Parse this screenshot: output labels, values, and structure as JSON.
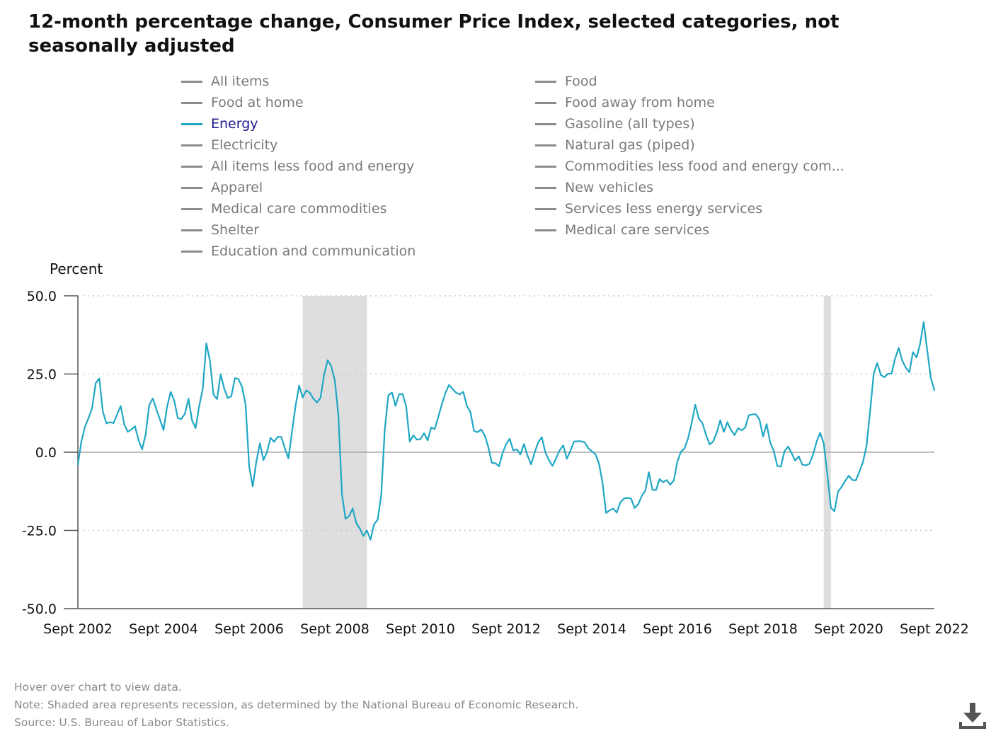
{
  "title": "12-month percentage change, Consumer Price Index, selected categories, not seasonally adjusted",
  "legend": [
    {
      "label": "All items",
      "active": false
    },
    {
      "label": "Food",
      "active": false
    },
    {
      "label": "Food at home",
      "active": false
    },
    {
      "label": "Food away from home",
      "active": false
    },
    {
      "label": "Energy",
      "active": true
    },
    {
      "label": "Gasoline (all types)",
      "active": false
    },
    {
      "label": "Electricity",
      "active": false
    },
    {
      "label": "Natural gas (piped)",
      "active": false
    },
    {
      "label": "All items less food and energy",
      "active": false
    },
    {
      "label": "Commodities less food and energy com...",
      "active": false
    },
    {
      "label": "Apparel",
      "active": false
    },
    {
      "label": "New vehicles",
      "active": false
    },
    {
      "label": "Medical care commodities",
      "active": false
    },
    {
      "label": "Services less energy services",
      "active": false
    },
    {
      "label": "Shelter",
      "active": false
    },
    {
      "label": "Medical care services",
      "active": false
    },
    {
      "label": "Education and communication",
      "active": false
    }
  ],
  "colors": {
    "active_series": "#1fa7c4",
    "inactive_series": "#8c8c8c",
    "recession_shade": "#dedede",
    "grid": "#c8c8c8",
    "zero_line": "#9a9a9a",
    "axis": "#555555"
  },
  "footnotes": {
    "hover": "Hover over chart to view data.",
    "note": "Note: Shaded area represents recession, as determined by the National Bureau of Economic Research.",
    "source": "Source: U.S. Bureau of Labor Statistics."
  },
  "icons": {
    "download": "download-icon"
  },
  "chart_data": {
    "type": "line",
    "ylabel": "Percent",
    "ylim": [
      -50,
      50
    ],
    "yticks": [
      50,
      25,
      0,
      -25,
      -50
    ],
    "ytick_labels": [
      "50.0",
      "25.0",
      "0.0",
      "-25.0",
      "-50.0"
    ],
    "xlim": [
      "2002-09",
      "2022-09"
    ],
    "xticks": [
      "2002-09",
      "2004-09",
      "2006-09",
      "2008-09",
      "2010-09",
      "2012-09",
      "2014-09",
      "2016-09",
      "2018-09",
      "2020-09",
      "2022-09"
    ],
    "xtick_labels": [
      "Sept 2002",
      "Sept 2004",
      "Sept 2006",
      "Sept 2008",
      "Sept 2010",
      "Sept 2012",
      "Sept 2014",
      "Sept 2016",
      "Sept 2018",
      "Sept 2020",
      "Sept 2022"
    ],
    "grid": "horizontal dotted at 25.0, 50.0 and -25.0; solid line at 0.0",
    "recessions": [
      {
        "start": "2007-12",
        "end": "2009-06"
      },
      {
        "start": "2020-02",
        "end": "2020-04"
      }
    ],
    "series": [
      {
        "name": "Energy",
        "start": "2002-09",
        "frequency": "monthly",
        "values": [
          -4.0,
          3.5,
          8.2,
          10.9,
          14.2,
          22.1,
          23.6,
          13.0,
          9.2,
          9.6,
          9.3,
          12.1,
          14.8,
          8.9,
          6.5,
          7.3,
          8.3,
          3.9,
          0.9,
          5.7,
          15.1,
          17.2,
          13.7,
          10.5,
          7.1,
          14.5,
          19.3,
          16.5,
          10.9,
          10.6,
          12.3,
          17.1,
          10.2,
          7.7,
          14.8,
          20.2,
          34.8,
          29.3,
          18.4,
          17.0,
          24.9,
          20.4,
          17.3,
          17.9,
          23.7,
          23.4,
          20.9,
          15.2,
          -4.5,
          -10.9,
          -3.1,
          2.9,
          -2.5,
          0.1,
          4.6,
          3.3,
          4.9,
          4.9,
          1.3,
          -2.0,
          6.5,
          14.8,
          21.3,
          17.5,
          19.8,
          19.0,
          17.1,
          15.9,
          17.4,
          24.8,
          29.4,
          27.5,
          23.0,
          11.8,
          -13.4,
          -21.3,
          -20.4,
          -18.0,
          -22.6,
          -24.4,
          -26.8,
          -25.0,
          -28.0,
          -23.0,
          -21.6,
          -13.8,
          7.2,
          18.2,
          19.1,
          14.8,
          18.5,
          18.6,
          14.6,
          3.4,
          5.4,
          4.0,
          4.2,
          6.1,
          3.8,
          7.9,
          7.4,
          11.3,
          15.4,
          19.0,
          21.5,
          20.2,
          19.0,
          18.5,
          19.3,
          14.8,
          12.8,
          6.8,
          6.4,
          7.3,
          5.4,
          1.7,
          -3.4,
          -3.5,
          -4.5,
          -0.3,
          2.6,
          4.3,
          0.6,
          0.9,
          -0.7,
          2.6,
          -1.1,
          -3.9,
          -0.1,
          3.2,
          4.8,
          -0.1,
          -2.5,
          -4.4,
          -2.0,
          0.6,
          2.2,
          -2.1,
          0.4,
          3.4,
          3.5,
          3.5,
          3.2,
          1.3,
          0.3,
          -0.6,
          -3.5,
          -9.6,
          -19.4,
          -18.6,
          -18.0,
          -19.3,
          -16.1,
          -14.8,
          -14.6,
          -14.8,
          -17.8,
          -16.7,
          -14.0,
          -12.3,
          -6.4,
          -12.0,
          -12.1,
          -8.6,
          -9.6,
          -8.9,
          -10.4,
          -9.0,
          -2.9,
          0.2,
          1.2,
          4.5,
          9.3,
          15.2,
          10.7,
          9.3,
          5.6,
          2.5,
          3.4,
          6.2,
          10.2,
          6.5,
          9.6,
          7.1,
          5.5,
          7.7,
          7.0,
          7.9,
          11.8,
          12.1,
          12.1,
          10.4,
          5.0,
          9.0,
          3.1,
          0.4,
          -4.4,
          -4.6,
          0.3,
          1.8,
          -0.3,
          -2.7,
          -1.3,
          -4.0,
          -4.2,
          -3.7,
          -0.8,
          3.4,
          6.2,
          2.8,
          -6.9,
          -17.7,
          -18.9,
          -12.6,
          -11.1,
          -9.2,
          -7.5,
          -8.9,
          -9.0,
          -6.2,
          -3.1,
          2.1,
          13.2,
          25.1,
          28.5,
          24.7,
          24.0,
          25.1,
          25.1,
          30.0,
          33.3,
          29.3,
          27.0,
          25.6,
          32.0,
          30.3,
          34.6,
          41.6,
          32.6,
          23.8,
          19.8
        ]
      }
    ]
  }
}
